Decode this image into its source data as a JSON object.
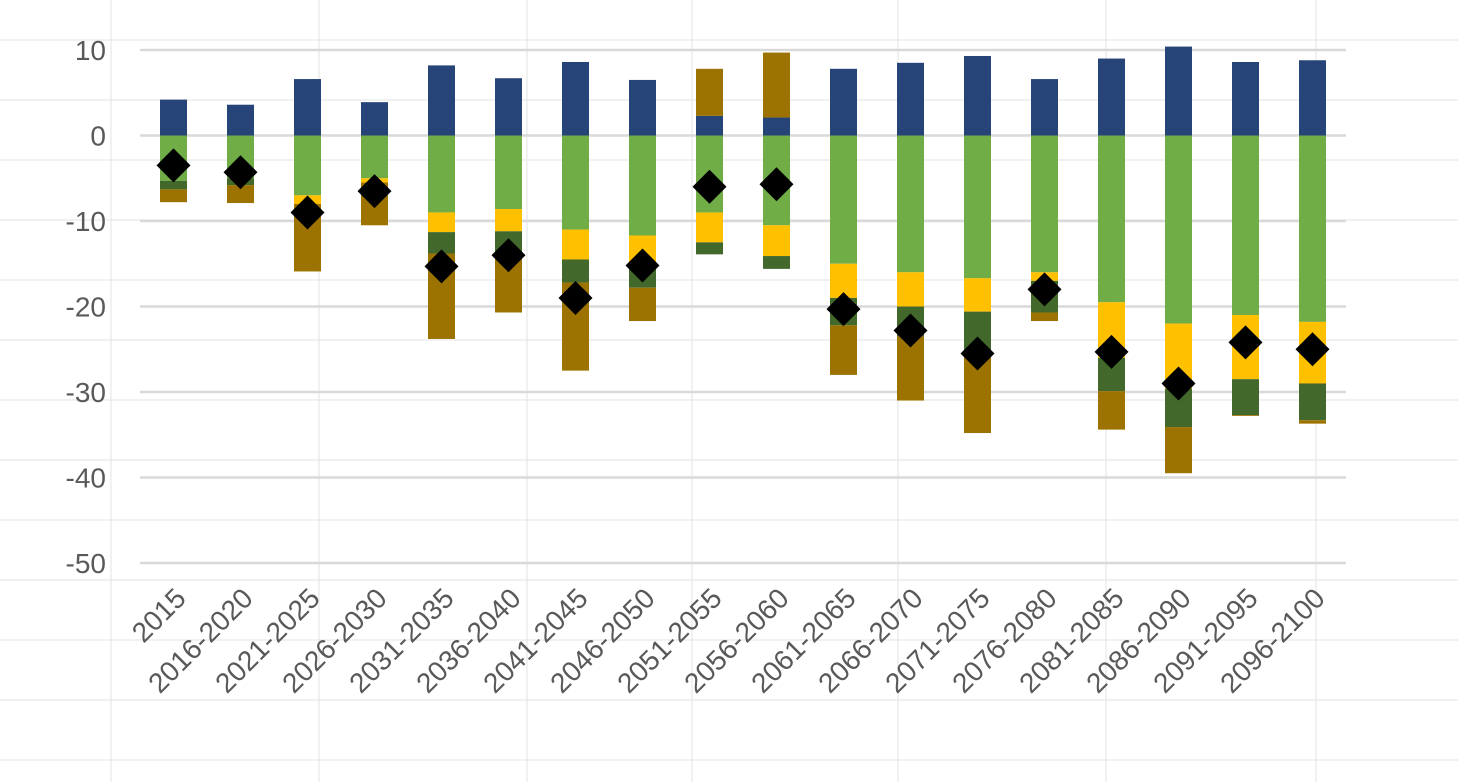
{
  "chart_data": {
    "type": "bar",
    "stacked": true,
    "categories": [
      "2015",
      "2016-2020",
      "2021-2025",
      "2026-2030",
      "2031-2035",
      "2036-2040",
      "2041-2045",
      "2046-2050",
      "2051-2055",
      "2056-2060",
      "2061-2065",
      "2066-2070",
      "2071-2075",
      "2076-2080",
      "2081-2085",
      "2086-2090",
      "2091-2095",
      "2096-2100"
    ],
    "ylim": [
      -50,
      10
    ],
    "yticks": [
      10,
      0,
      -10,
      -20,
      -30,
      -40,
      -50
    ],
    "grid": true,
    "title": "",
    "xlabel": "",
    "ylabel": "",
    "series": [
      {
        "color": "#264478",
        "values": [
          4.2,
          3.6,
          6.6,
          3.9,
          8.2,
          6.7,
          8.6,
          6.5,
          2.3,
          2.1,
          7.8,
          8.5,
          9.3,
          6.6,
          9.0,
          10.4,
          8.6,
          8.8
        ]
      },
      {
        "color": "#70AD47",
        "values": [
          -5.3,
          -5.0,
          -7.0,
          -5.0,
          -9.0,
          -8.6,
          -11.0,
          -11.7,
          -9.0,
          -10.5,
          -15.0,
          -16.0,
          -16.7,
          -16.0,
          -19.5,
          -22.0,
          -21.0,
          -21.8
        ]
      },
      {
        "color": "#FFC000",
        "values": [
          0.0,
          0.0,
          -1.0,
          -0.5,
          -2.3,
          -2.6,
          -3.5,
          -3.1,
          -3.5,
          -3.6,
          -4.0,
          -4.0,
          -3.9,
          -1.0,
          -6.5,
          -7.6,
          -7.5,
          -7.2
        ]
      },
      {
        "color": "#43682B",
        "values": [
          -1.0,
          -0.8,
          0.0,
          0.0,
          -2.5,
          -2.6,
          -2.7,
          -3.0,
          -1.4,
          -1.5,
          -3.2,
          -3.5,
          -4.5,
          -3.7,
          -3.9,
          -4.5,
          -4.2,
          -4.3
        ]
      },
      {
        "color": "#9C7300",
        "values": [
          -1.5,
          -2.1,
          -7.9,
          -5.0,
          -10.0,
          -6.9,
          -10.3,
          -3.9,
          5.5,
          7.6,
          -5.8,
          -7.5,
          -9.7,
          -1.0,
          -4.5,
          -5.4,
          -0.1,
          -0.4
        ]
      },
      {
        "type": "scatter",
        "marker": "diamond",
        "color": "#000000",
        "values": [
          -3.5,
          -4.3,
          -9.0,
          -6.5,
          -15.3,
          -14.0,
          -19.0,
          -15.2,
          -6.0,
          -5.7,
          -20.3,
          -22.8,
          -25.5,
          -18.0,
          -25.3,
          -29.0,
          -24.2,
          -25.0
        ]
      }
    ]
  }
}
